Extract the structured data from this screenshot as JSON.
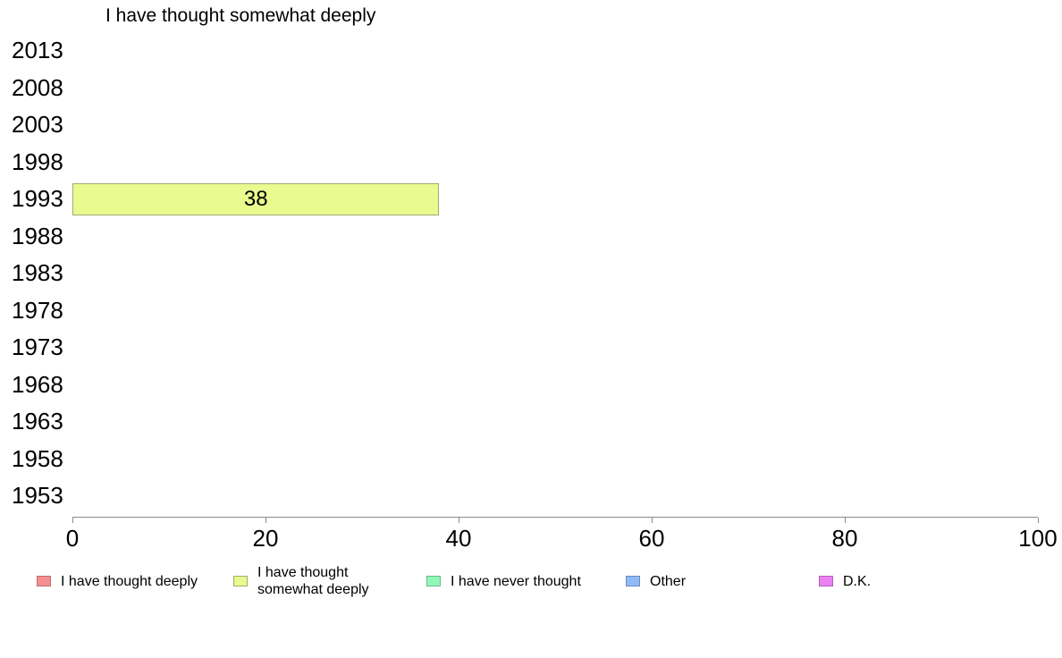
{
  "title": "I have thought somewhat deeply",
  "chart_data": {
    "type": "bar",
    "orientation": "horizontal",
    "title": "I have thought somewhat deeply",
    "categories": [
      "2013",
      "2008",
      "2003",
      "1998",
      "1993",
      "1988",
      "1983",
      "1978",
      "1973",
      "1968",
      "1963",
      "1958",
      "1953"
    ],
    "xlim": [
      0,
      100
    ],
    "xticks": [
      0,
      20,
      40,
      60,
      80,
      100
    ],
    "grid": false,
    "bar_labels": true,
    "legend_position": "bottom",
    "axis_color": "#8c8c8c",
    "series": [
      {
        "name": "I have thought deeply",
        "legend_lines": [
          "I have thought deeply"
        ],
        "color": "#f58f8f",
        "border": "#bd7070",
        "values": [
          null,
          null,
          null,
          null,
          null,
          null,
          null,
          null,
          null,
          null,
          null,
          null,
          null
        ]
      },
      {
        "name": "I have thought somewhat deeply",
        "legend_lines": [
          "I have thought",
          "somewhat deeply"
        ],
        "color": "#e9fa8e",
        "border": "#a3aa74",
        "values": [
          null,
          null,
          null,
          null,
          38,
          null,
          null,
          null,
          null,
          null,
          null,
          null,
          null
        ]
      },
      {
        "name": "I have never thought",
        "legend_lines": [
          "I have never thought"
        ],
        "color": "#90f7b8",
        "border": "#6cb989",
        "values": [
          null,
          null,
          null,
          null,
          null,
          null,
          null,
          null,
          null,
          null,
          null,
          null,
          null
        ]
      },
      {
        "name": "Other",
        "legend_lines": [
          "Other"
        ],
        "color": "#90baf7",
        "border": "#6c8bb9",
        "values": [
          null,
          null,
          null,
          null,
          null,
          null,
          null,
          null,
          null,
          null,
          null,
          null,
          null
        ]
      },
      {
        "name": "D.K.",
        "legend_lines": [
          "D.K."
        ],
        "color": "#ec80f2",
        "border": "#b160b6",
        "values": [
          null,
          null,
          null,
          null,
          null,
          null,
          null,
          null,
          null,
          null,
          null,
          null,
          null
        ]
      }
    ]
  }
}
